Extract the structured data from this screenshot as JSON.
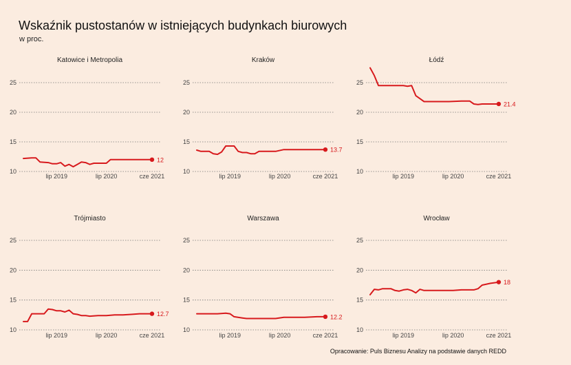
{
  "header": {
    "title": "Wskaźnik pustostanów w istniejących budynkach biurowych",
    "subtitle": "w proc."
  },
  "footer": {
    "source": "Opracowanie: Puls Biznesu Analizy na podstawie danych REDD"
  },
  "colors": {
    "background": "#fbece0",
    "line": "#d7191c",
    "grid": "#777777",
    "text": "#222222"
  },
  "chart_data": {
    "type": "line",
    "facets": 6,
    "ylim": [
      10,
      27
    ],
    "yticks": [
      10,
      15,
      20,
      25
    ],
    "xlim": [
      "2018-10",
      "2021-08"
    ],
    "xticks": [
      {
        "label": "lip 2019",
        "date": "2019-07"
      },
      {
        "label": "lip 2020",
        "date": "2020-07"
      },
      {
        "label": "cze 2021",
        "date": "2021-06"
      }
    ],
    "grid": "horizontal dotted",
    "panels": [
      {
        "name": "Katowice i Metropolia",
        "end_label": "12",
        "points": [
          [
            "2018-11",
            12.2
          ],
          [
            "2019-01",
            12.3
          ],
          [
            "2019-02",
            12.3
          ],
          [
            "2019-03",
            11.6
          ],
          [
            "2019-05",
            11.5
          ],
          [
            "2019-06",
            11.3
          ],
          [
            "2019-07",
            11.3
          ],
          [
            "2019-08",
            11.5
          ],
          [
            "2019-09",
            10.9
          ],
          [
            "2019-10",
            11.2
          ],
          [
            "2019-11",
            10.8
          ],
          [
            "2019-12",
            11.2
          ],
          [
            "2020-01",
            11.6
          ],
          [
            "2020-02",
            11.5
          ],
          [
            "2020-03",
            11.2
          ],
          [
            "2020-04",
            11.4
          ],
          [
            "2020-06",
            11.4
          ],
          [
            "2020-07",
            11.4
          ],
          [
            "2020-08",
            12.0
          ],
          [
            "2020-10",
            12.0
          ],
          [
            "2021-01",
            12.0
          ],
          [
            "2021-06",
            12.0
          ]
        ]
      },
      {
        "name": "Kraków",
        "end_label": "13.7",
        "points": [
          [
            "2018-11",
            13.6
          ],
          [
            "2018-12",
            13.4
          ],
          [
            "2019-02",
            13.4
          ],
          [
            "2019-03",
            13.0
          ],
          [
            "2019-04",
            12.9
          ],
          [
            "2019-05",
            13.3
          ],
          [
            "2019-06",
            14.3
          ],
          [
            "2019-08",
            14.3
          ],
          [
            "2019-09",
            13.4
          ],
          [
            "2019-10",
            13.2
          ],
          [
            "2019-11",
            13.2
          ],
          [
            "2019-12",
            13.0
          ],
          [
            "2020-01",
            13.0
          ],
          [
            "2020-02",
            13.4
          ],
          [
            "2020-04",
            13.4
          ],
          [
            "2020-06",
            13.4
          ],
          [
            "2020-08",
            13.7
          ],
          [
            "2020-10",
            13.7
          ],
          [
            "2021-02",
            13.7
          ],
          [
            "2021-06",
            13.7
          ]
        ]
      },
      {
        "name": "Łódź",
        "end_label": "21.4",
        "points": [
          [
            "2018-11",
            27.5
          ],
          [
            "2018-12",
            26.2
          ],
          [
            "2019-01",
            24.5
          ],
          [
            "2019-03",
            24.5
          ],
          [
            "2019-05",
            24.5
          ],
          [
            "2019-07",
            24.5
          ],
          [
            "2019-08",
            24.4
          ],
          [
            "2019-09",
            24.5
          ],
          [
            "2019-10",
            22.8
          ],
          [
            "2019-11",
            22.3
          ],
          [
            "2019-12",
            21.8
          ],
          [
            "2020-02",
            21.8
          ],
          [
            "2020-04",
            21.8
          ],
          [
            "2020-06",
            21.8
          ],
          [
            "2020-09",
            21.9
          ],
          [
            "2020-11",
            21.9
          ],
          [
            "2020-12",
            21.4
          ],
          [
            "2021-01",
            21.3
          ],
          [
            "2021-02",
            21.4
          ],
          [
            "2021-04",
            21.4
          ],
          [
            "2021-06",
            21.4
          ]
        ]
      },
      {
        "name": "Trójmiasto",
        "end_label": "12.7",
        "points": [
          [
            "2018-11",
            11.4
          ],
          [
            "2018-12",
            11.4
          ],
          [
            "2019-01",
            12.7
          ],
          [
            "2019-03",
            12.7
          ],
          [
            "2019-04",
            12.7
          ],
          [
            "2019-05",
            13.5
          ],
          [
            "2019-06",
            13.4
          ],
          [
            "2019-07",
            13.2
          ],
          [
            "2019-08",
            13.2
          ],
          [
            "2019-09",
            13.0
          ],
          [
            "2019-10",
            13.3
          ],
          [
            "2019-11",
            12.7
          ],
          [
            "2019-12",
            12.6
          ],
          [
            "2020-01",
            12.4
          ],
          [
            "2020-02",
            12.4
          ],
          [
            "2020-03",
            12.3
          ],
          [
            "2020-05",
            12.4
          ],
          [
            "2020-07",
            12.4
          ],
          [
            "2020-09",
            12.5
          ],
          [
            "2020-11",
            12.5
          ],
          [
            "2021-01",
            12.6
          ],
          [
            "2021-03",
            12.7
          ],
          [
            "2021-06",
            12.7
          ]
        ]
      },
      {
        "name": "Warszawa",
        "end_label": "12.2",
        "points": [
          [
            "2018-11",
            12.7
          ],
          [
            "2019-01",
            12.7
          ],
          [
            "2019-04",
            12.7
          ],
          [
            "2019-06",
            12.8
          ],
          [
            "2019-07",
            12.7
          ],
          [
            "2019-08",
            12.2
          ],
          [
            "2019-10",
            12.0
          ],
          [
            "2019-11",
            11.9
          ],
          [
            "2020-01",
            11.9
          ],
          [
            "2020-04",
            11.9
          ],
          [
            "2020-06",
            11.9
          ],
          [
            "2020-08",
            12.1
          ],
          [
            "2020-10",
            12.1
          ],
          [
            "2021-01",
            12.1
          ],
          [
            "2021-04",
            12.2
          ],
          [
            "2021-06",
            12.2
          ]
        ]
      },
      {
        "name": "Wrocław",
        "end_label": "18",
        "points": [
          [
            "2018-11",
            15.9
          ],
          [
            "2018-12",
            16.8
          ],
          [
            "2019-01",
            16.7
          ],
          [
            "2019-02",
            16.9
          ],
          [
            "2019-04",
            16.9
          ],
          [
            "2019-05",
            16.6
          ],
          [
            "2019-06",
            16.5
          ],
          [
            "2019-07",
            16.7
          ],
          [
            "2019-08",
            16.8
          ],
          [
            "2019-09",
            16.6
          ],
          [
            "2019-10",
            16.2
          ],
          [
            "2019-11",
            16.8
          ],
          [
            "2019-12",
            16.6
          ],
          [
            "2020-02",
            16.6
          ],
          [
            "2020-04",
            16.6
          ],
          [
            "2020-07",
            16.6
          ],
          [
            "2020-09",
            16.7
          ],
          [
            "2020-12",
            16.7
          ],
          [
            "2021-01",
            16.9
          ],
          [
            "2021-02",
            17.5
          ],
          [
            "2021-04",
            17.8
          ],
          [
            "2021-06",
            18.0
          ]
        ]
      }
    ]
  }
}
